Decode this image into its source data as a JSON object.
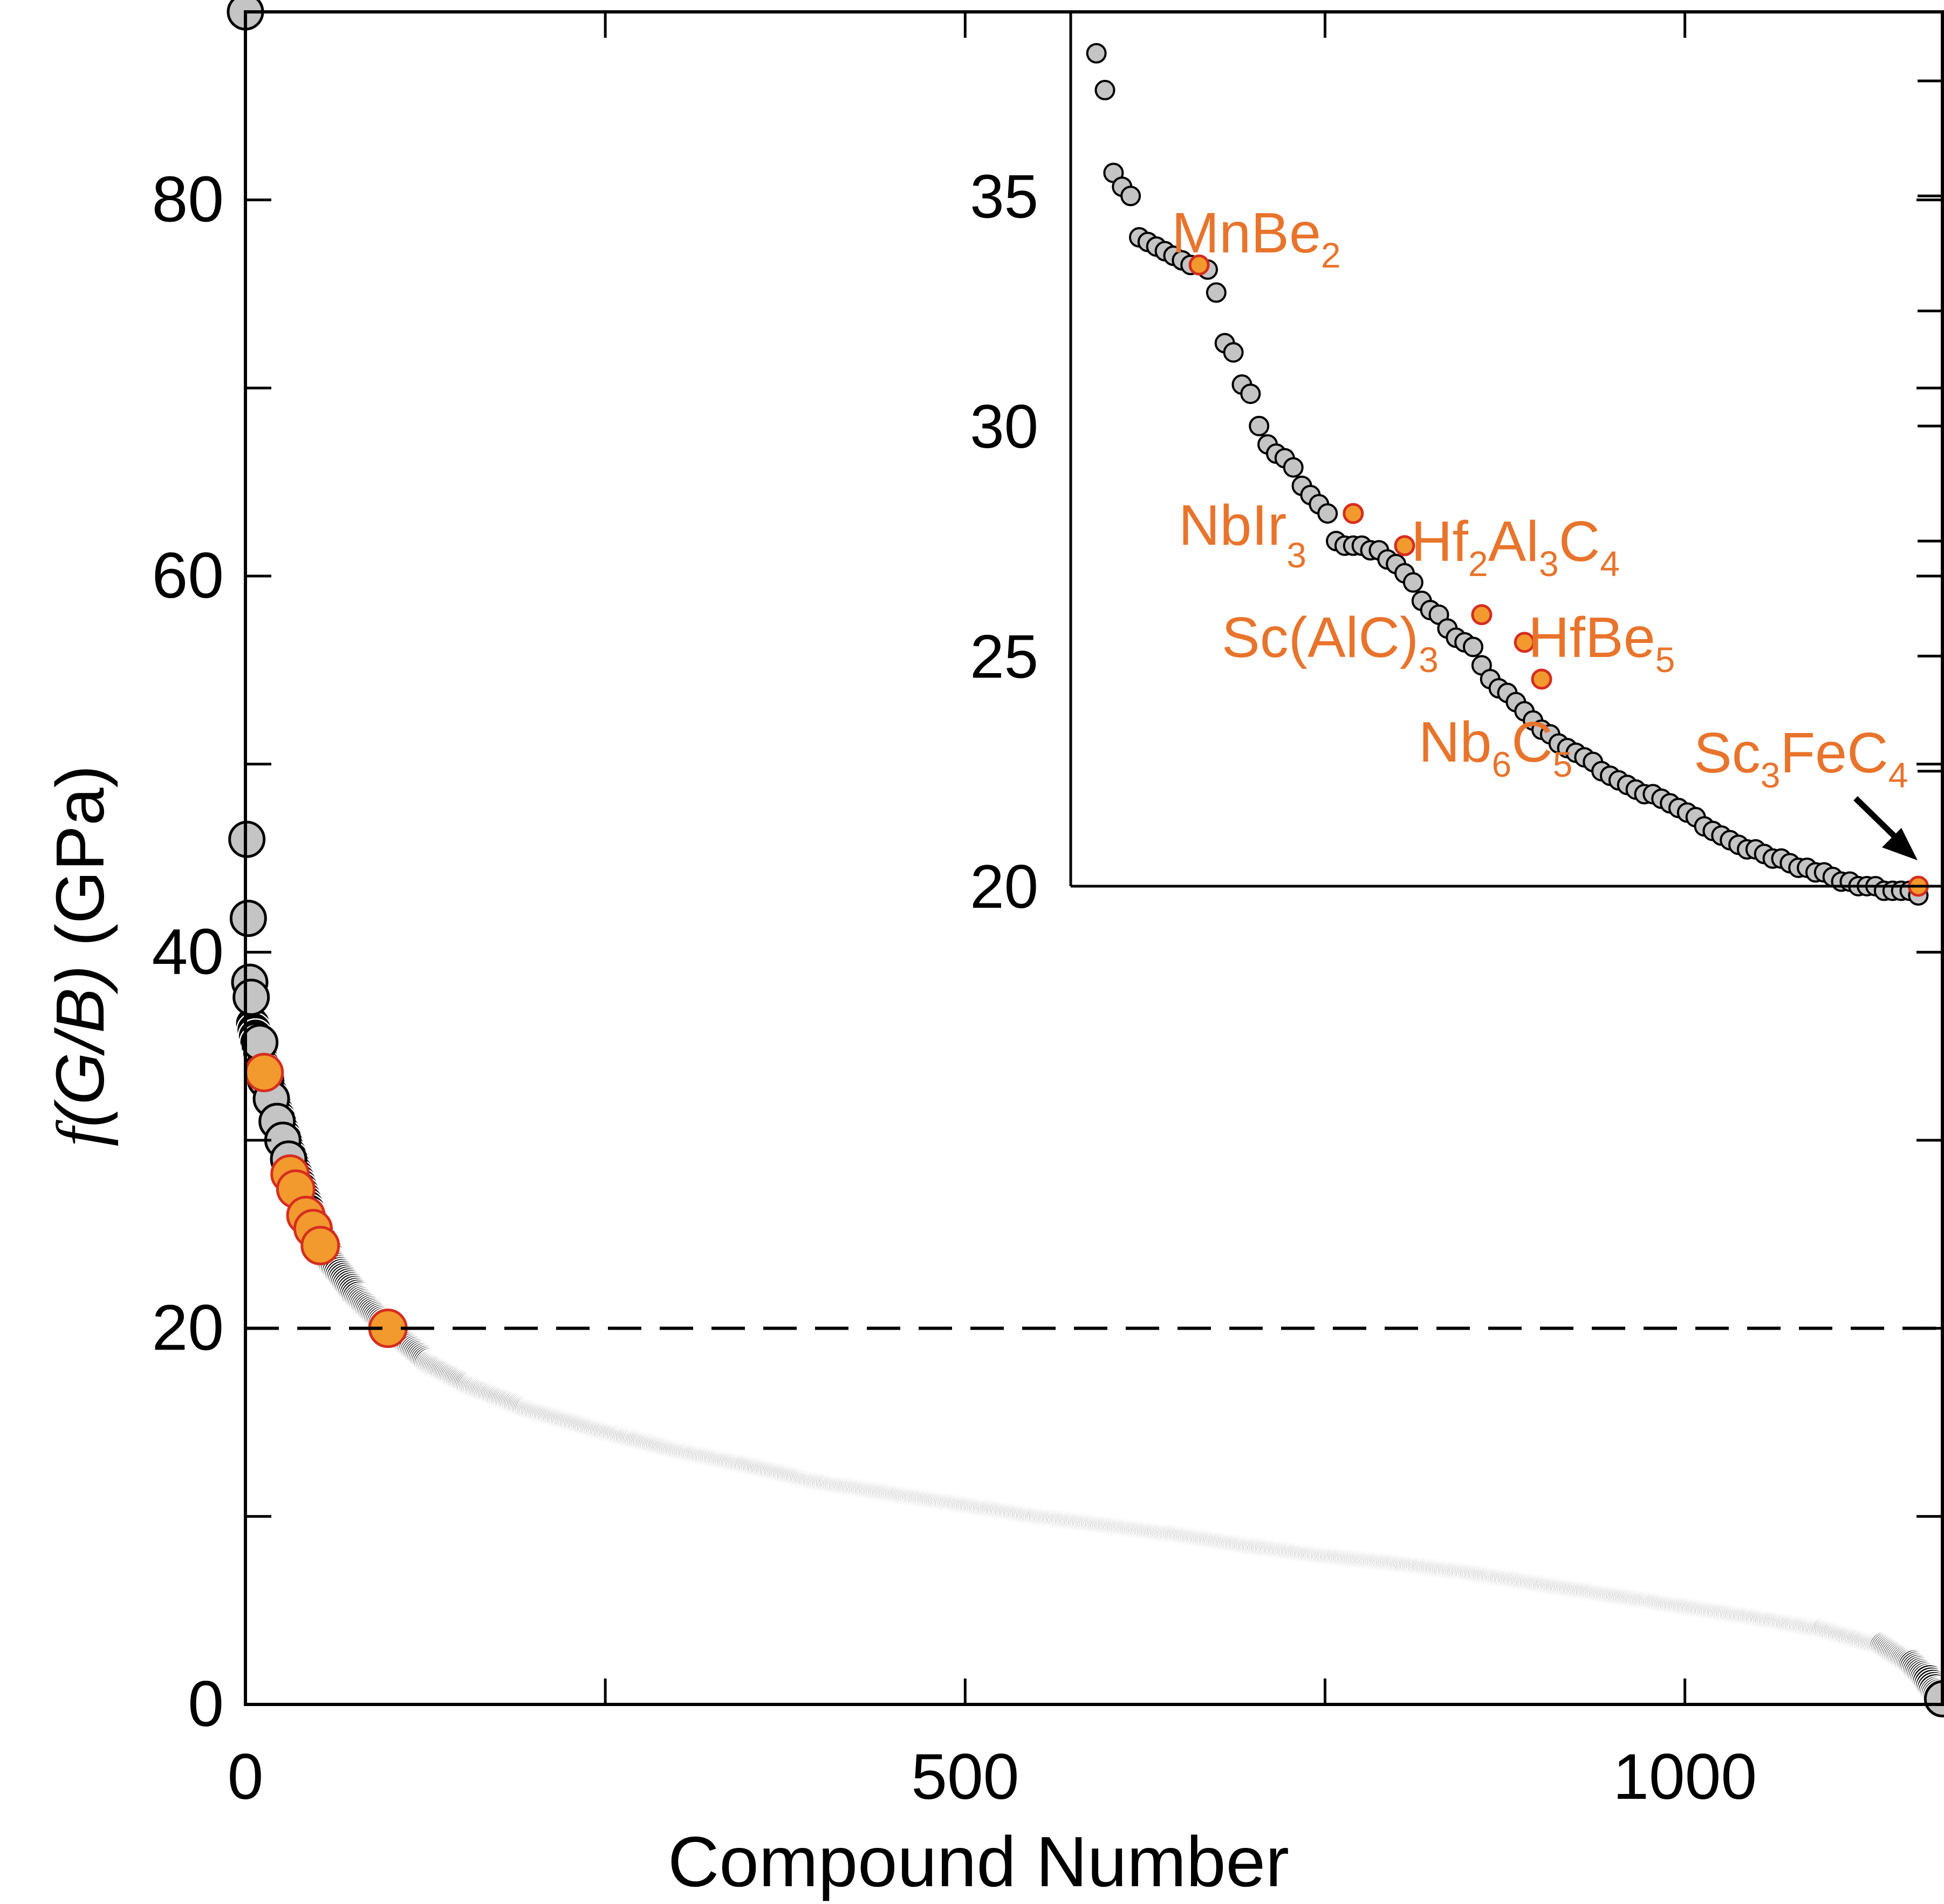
{
  "colors": {
    "background": "#ffffff",
    "axis": "#000000",
    "point_dark": "#000000",
    "point_gray": "#c4c4c4",
    "highlight_fill": "#f39a2e",
    "highlight_edge": "#d62d1f",
    "annotation": "#e8742c"
  },
  "chart_data": [
    {
      "type": "scatter",
      "name": "main",
      "xlabel": "Compound Number",
      "ylabel_prefix": "f",
      "ylabel_italic": "(G/B)",
      "ylabel_suffix": " (GPa)",
      "xlim": [
        0,
        1180
      ],
      "ylim": [
        0,
        90
      ],
      "xticks": [
        0,
        500,
        1000
      ],
      "xtick_labels": [
        "0",
        "500",
        "1000"
      ],
      "yticks": [
        0,
        20,
        40,
        60,
        80
      ],
      "ytick_labels": [
        "0",
        "20",
        "40",
        "60",
        "80"
      ],
      "reference_line_y": 20,
      "total_compounds": 1180,
      "curve_profile": [
        [
          0,
          90.0
        ],
        [
          1,
          46.0
        ],
        [
          2,
          41.8
        ],
        [
          3,
          38.4
        ],
        [
          4,
          37.6
        ],
        [
          5,
          36.2
        ],
        [
          8,
          35.2
        ],
        [
          12,
          34.0
        ],
        [
          20,
          32.0
        ],
        [
          30,
          29.5
        ],
        [
          45,
          26.0
        ],
        [
          60,
          23.5
        ],
        [
          80,
          21.5
        ],
        [
          100,
          20.0
        ],
        [
          130,
          18.0
        ],
        [
          160,
          16.8
        ],
        [
          200,
          15.6
        ],
        [
          250,
          14.5
        ],
        [
          300,
          13.5
        ],
        [
          350,
          12.7
        ],
        [
          400,
          11.8
        ],
        [
          450,
          11.2
        ],
        [
          500,
          10.6
        ],
        [
          550,
          10.0
        ],
        [
          600,
          9.5
        ],
        [
          650,
          9.0
        ],
        [
          700,
          8.4
        ],
        [
          750,
          7.9
        ],
        [
          800,
          7.5
        ],
        [
          850,
          7.0
        ],
        [
          900,
          6.4
        ],
        [
          950,
          5.8
        ],
        [
          1000,
          5.2
        ],
        [
          1050,
          4.6
        ],
        [
          1100,
          3.9
        ],
        [
          1140,
          3.0
        ],
        [
          1160,
          2.0
        ],
        [
          1170,
          1.2
        ],
        [
          1175,
          0.6
        ],
        [
          1179,
          0.3
        ]
      ],
      "gray_points": [
        [
          0,
          90.0
        ],
        [
          1,
          46.0
        ],
        [
          2,
          41.8
        ],
        [
          3,
          38.4
        ],
        [
          4,
          37.6
        ],
        [
          10,
          35.2
        ],
        [
          14,
          33.2
        ],
        [
          18,
          32.2
        ],
        [
          22,
          31.0
        ],
        [
          26,
          30.0
        ],
        [
          30,
          29.0
        ],
        [
          1179,
          0.3
        ]
      ],
      "highlight_points": [
        [
          13,
          33.6
        ],
        [
          31,
          28.2
        ],
        [
          35,
          27.4
        ],
        [
          42,
          26.0
        ],
        [
          47,
          25.3
        ],
        [
          52,
          24.4
        ],
        [
          99,
          20.0
        ]
      ]
    },
    {
      "type": "scatter",
      "name": "inset",
      "xlim": [
        -3,
        99
      ],
      "ylim": [
        20,
        39
      ],
      "yticks": [
        20,
        25,
        30,
        35
      ],
      "ytick_labels": [
        "20",
        "25",
        "30",
        "35"
      ],
      "points": [
        [
          0,
          38.1
        ],
        [
          1,
          37.3
        ],
        [
          2,
          35.5
        ],
        [
          3,
          35.2
        ],
        [
          4,
          35.0
        ],
        [
          5,
          34.1
        ],
        [
          6,
          34.0
        ],
        [
          7,
          33.9
        ],
        [
          8,
          33.8
        ],
        [
          9,
          33.7
        ],
        [
          10,
          33.6
        ],
        [
          11,
          33.5
        ],
        [
          12,
          33.5
        ],
        [
          13,
          33.4
        ],
        [
          14,
          32.9
        ],
        [
          15,
          31.8
        ],
        [
          16,
          31.6
        ],
        [
          17,
          30.9
        ],
        [
          18,
          30.7
        ],
        [
          19,
          30.0
        ],
        [
          20,
          29.6
        ],
        [
          21,
          29.4
        ],
        [
          22,
          29.3
        ],
        [
          23,
          29.1
        ],
        [
          24,
          28.7
        ],
        [
          25,
          28.5
        ],
        [
          26,
          28.3
        ],
        [
          27,
          28.1
        ],
        [
          28,
          27.5
        ],
        [
          29,
          27.4
        ],
        [
          30,
          27.4
        ],
        [
          31,
          27.4
        ],
        [
          32,
          27.3
        ],
        [
          33,
          27.3
        ],
        [
          34,
          27.1
        ],
        [
          35,
          27.0
        ],
        [
          36,
          26.8
        ],
        [
          37,
          26.6
        ],
        [
          38,
          26.2
        ],
        [
          39,
          26.0
        ],
        [
          40,
          25.9
        ],
        [
          41,
          25.6
        ],
        [
          42,
          25.4
        ],
        [
          43,
          25.3
        ],
        [
          44,
          25.2
        ],
        [
          45,
          24.8
        ],
        [
          46,
          24.5
        ],
        [
          47,
          24.3
        ],
        [
          48,
          24.2
        ],
        [
          49,
          24.0
        ],
        [
          50,
          23.8
        ],
        [
          51,
          23.6
        ],
        [
          52,
          23.4
        ],
        [
          53,
          23.3
        ],
        [
          54,
          23.1
        ],
        [
          55,
          23.0
        ],
        [
          56,
          22.9
        ],
        [
          57,
          22.8
        ],
        [
          58,
          22.7
        ],
        [
          59,
          22.5
        ],
        [
          60,
          22.4
        ],
        [
          61,
          22.3
        ],
        [
          62,
          22.2
        ],
        [
          63,
          22.1
        ],
        [
          64,
          22.0
        ],
        [
          65,
          22.0
        ],
        [
          66,
          21.9
        ],
        [
          67,
          21.8
        ],
        [
          68,
          21.7
        ],
        [
          69,
          21.6
        ],
        [
          70,
          21.5
        ],
        [
          71,
          21.3
        ],
        [
          72,
          21.2
        ],
        [
          73,
          21.1
        ],
        [
          74,
          21.0
        ],
        [
          75,
          20.9
        ],
        [
          76,
          20.8
        ],
        [
          77,
          20.8
        ],
        [
          78,
          20.7
        ],
        [
          79,
          20.6
        ],
        [
          80,
          20.6
        ],
        [
          81,
          20.5
        ],
        [
          82,
          20.4
        ],
        [
          83,
          20.4
        ],
        [
          84,
          20.3
        ],
        [
          85,
          20.3
        ],
        [
          86,
          20.2
        ],
        [
          87,
          20.1
        ],
        [
          88,
          20.1
        ],
        [
          89,
          20.0
        ],
        [
          90,
          20.0
        ],
        [
          91,
          20.0
        ],
        [
          92,
          19.9
        ],
        [
          93,
          19.9
        ],
        [
          94,
          19.9
        ],
        [
          95,
          19.9
        ],
        [
          96,
          19.8
        ]
      ],
      "highlight_points": [
        {
          "x": 12,
          "y": 33.5,
          "label": "MnBe",
          "sub": "2"
        },
        {
          "x": 30,
          "y": 28.1,
          "label": "NbIr",
          "sub": "3"
        },
        {
          "x": 36,
          "y": 27.4,
          "label": "Hf2Al3C4"
        },
        {
          "x": 45,
          "y": 25.9,
          "label": "Sc(AlC)",
          "sub": "3"
        },
        {
          "x": 50,
          "y": 25.3,
          "label": "HfBe",
          "sub": "5"
        },
        {
          "x": 52,
          "y": 24.5,
          "label": "Nb6C5"
        },
        {
          "x": 96,
          "y": 20.0,
          "label": "Sc3FeC4"
        }
      ]
    }
  ],
  "annotations": {
    "mnbe2": {
      "main": "MnBe",
      "sub": "2"
    },
    "nbir3": {
      "main": "NbIr",
      "sub": "3"
    },
    "hf2al3c4": {
      "p1": "Hf",
      "s1": "2",
      "p2": "Al",
      "s2": "3",
      "p3": "C",
      "s3": "4"
    },
    "scalc3": {
      "main": "Sc(AlC)",
      "sub": "3"
    },
    "hfbe5": {
      "main": "HfBe",
      "sub": "5"
    },
    "nb6c5": {
      "p1": "Nb",
      "s1": "6",
      "p2": "C",
      "s2": "5"
    },
    "sc3fec4": {
      "p1": "Sc",
      "s1": "3",
      "p2": "FeC",
      "s2": "4"
    }
  }
}
